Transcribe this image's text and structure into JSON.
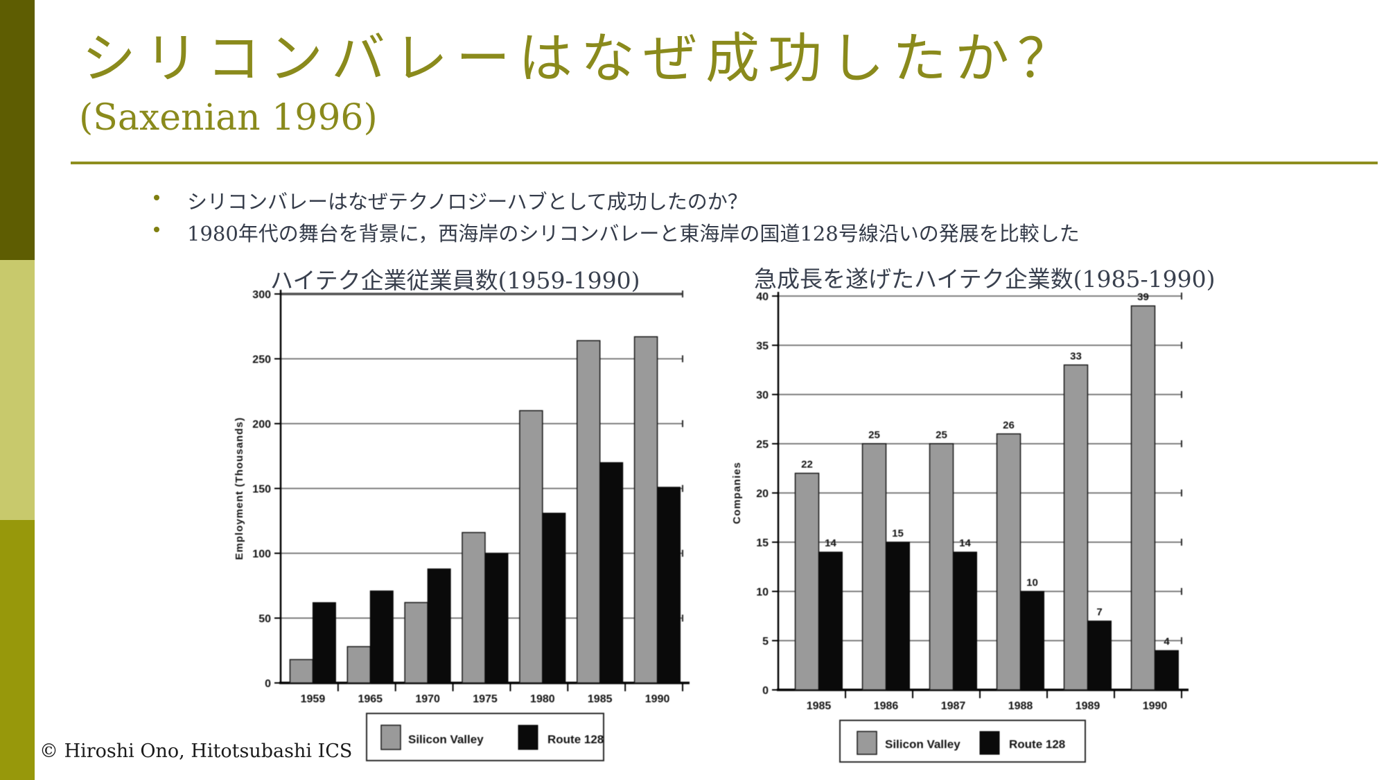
{
  "slide": {
    "title": "シリコンバレーはなぜ成功したか？",
    "subtitle": "(Saxenian 1996)",
    "bullets": [
      "シリコンバレーはなぜテクノロジーハブとして成功したのか？",
      "1980年代の舞台を背景に，西海岸のシリコンバレーと東海岸の国道128号線沿いの発展を比較した"
    ],
    "footer": "© Hiroshi Ono, Hitotsubashi ICS"
  },
  "colors": {
    "accent_olive": "#8e8e1e",
    "sidebar_dark": "#5e5d02",
    "sidebar_light": "#c8c96c",
    "sidebar_medium": "#97980b",
    "body_text": "#343b49",
    "bar_gray": "#9a9a9a",
    "bar_black": "#0a0a0a"
  },
  "chart_data": [
    {
      "type": "bar",
      "title": "ハイテク企業従業員数(1959-1990)",
      "xlabel": "",
      "ylabel": "Employment (Thousands)",
      "categories": [
        "1959",
        "1965",
        "1970",
        "1975",
        "1980",
        "1985",
        "1990"
      ],
      "series": [
        {
          "name": "Silicon Valley",
          "color": "#9a9a9a",
          "values": [
            18,
            28,
            62,
            116,
            210,
            264,
            267
          ]
        },
        {
          "name": "Route 128",
          "color": "#0a0a0a",
          "values": [
            62,
            71,
            88,
            100,
            131,
            170,
            151
          ]
        }
      ],
      "ylim": [
        0,
        300
      ],
      "ytick_step": 50,
      "grid": true,
      "legend_position": "bottom",
      "value_labels": false
    },
    {
      "type": "bar",
      "title": "急成長を遂げたハイテク企業数(1985-1990)",
      "xlabel": "",
      "ylabel": "Companies",
      "categories": [
        "1985",
        "1986",
        "1987",
        "1988",
        "1989",
        "1990"
      ],
      "series": [
        {
          "name": "Silicon Valley",
          "color": "#9a9a9a",
          "values": [
            22,
            25,
            25,
            26,
            33,
            39
          ]
        },
        {
          "name": "Route 128",
          "color": "#0a0a0a",
          "values": [
            14,
            15,
            14,
            10,
            7,
            4
          ]
        }
      ],
      "ylim": [
        0,
        40
      ],
      "ytick_step": 5,
      "grid": true,
      "legend_position": "bottom",
      "value_labels": true
    }
  ]
}
